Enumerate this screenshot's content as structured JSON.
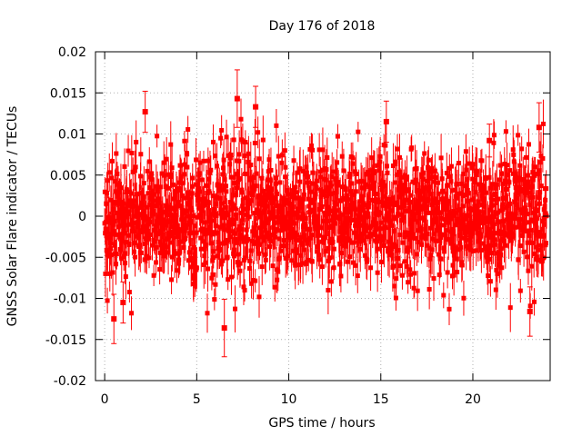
{
  "chart_data": {
    "type": "scatter",
    "title": "Day 176 of 2018",
    "xlabel": "GPS time / hours",
    "ylabel": "GNSS Solar Flare indicator / TECUs",
    "xlim": [
      -0.5,
      24.2
    ],
    "ylim": [
      -0.02,
      0.02
    ],
    "xticks": [
      0,
      5,
      10,
      15,
      20
    ],
    "yticks": [
      0.02,
      0.015,
      0.01,
      0.005,
      0,
      -0.005,
      -0.01,
      -0.015,
      -0.02
    ],
    "ytick_labels": [
      "0.02",
      "0.015",
      "0.01",
      "0.005",
      "0",
      "-0.005",
      "-0.01",
      "-0.015",
      "-0.02"
    ],
    "xtick_labels": [
      "0",
      "5",
      "10",
      "15",
      "20"
    ],
    "grid": true,
    "series": [
      {
        "name": "solar flare indicator",
        "color": "#ff0000",
        "marker": "square",
        "description_values": "≈2880 points with error bars, x from 0 to 24 h, values mostly within ±0.01 TECUs",
        "highlight_points": [
          {
            "x": 7.2,
            "y": 0.0143,
            "err": 0.0035
          },
          {
            "x": 8.2,
            "y": 0.0133,
            "err": 0.0025
          },
          {
            "x": 2.2,
            "y": 0.0127,
            "err": 0.0025
          },
          {
            "x": 23.6,
            "y": 0.0108,
            "err": 0.003
          },
          {
            "x": 0.5,
            "y": -0.0125,
            "err": 0.003
          },
          {
            "x": 6.5,
            "y": -0.0136,
            "err": 0.0035
          },
          {
            "x": 23.1,
            "y": -0.0116,
            "err": 0.003
          },
          {
            "x": 1.0,
            "y": -0.0105,
            "err": 0.0025
          },
          {
            "x": 20.9,
            "y": 0.0092,
            "err": 0.002
          },
          {
            "x": 15.3,
            "y": 0.0115,
            "err": 0.0025
          }
        ]
      }
    ]
  }
}
